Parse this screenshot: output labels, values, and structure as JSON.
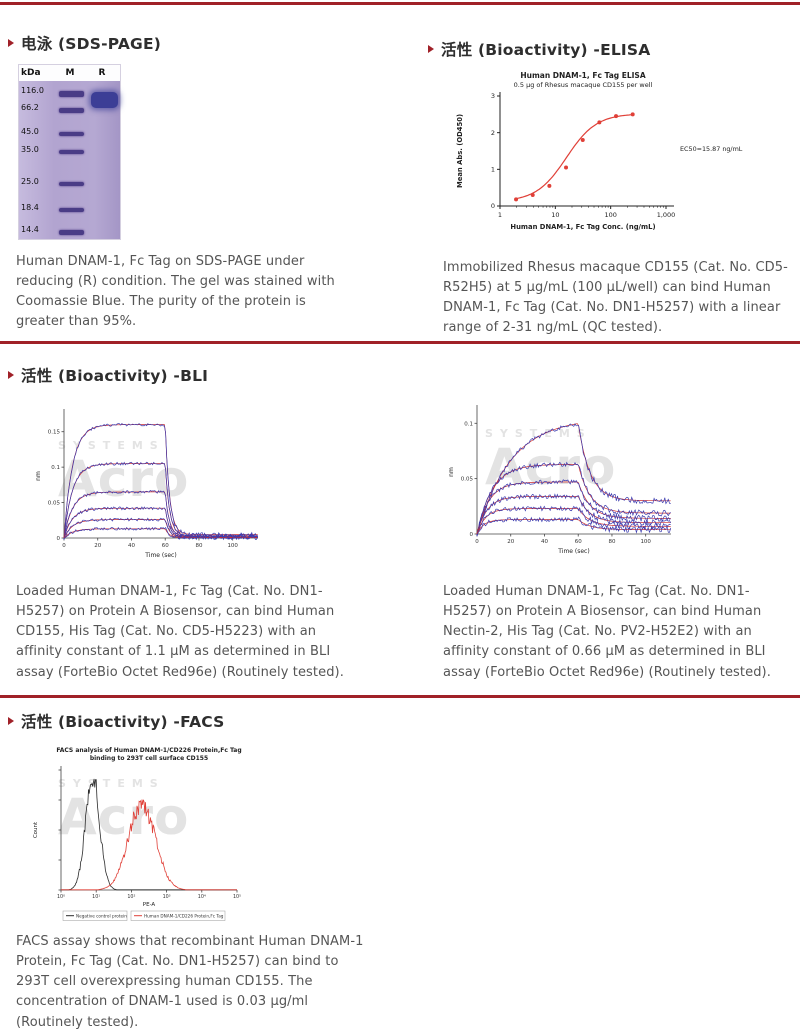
{
  "theme": {
    "accent": "#a02128",
    "text": "#555555",
    "band": "#4a3c86",
    "elisa_curve": "#e04038",
    "bli_data": "#3b3bb0",
    "bli_fit": "#cc2b2b",
    "facs_neg": "#2b2b2b",
    "facs_pos": "#e04038"
  },
  "watermark": {
    "brand": "Acro",
    "sub": "SYSTEMS"
  },
  "sections": {
    "sds": {
      "title": "电泳 (SDS-PAGE)",
      "gel": {
        "unit": "kDa",
        "lane_m": "M",
        "lane_r": "R",
        "markers": [
          "116.0",
          "66.2",
          "45.0",
          "35.0",
          "25.0",
          "18.4",
          "14.4"
        ]
      },
      "caption": "Human DNAM-1, Fc Tag on SDS-PAGE under reducing (R) condition. The gel was stained with Coomassie Blue. The purity of the protein is greater than 95%."
    },
    "elisa": {
      "title": "活性 (Bioactivity) -ELISA",
      "caption": "Immobilized Rhesus macaque CD155 (Cat. No. CD5-R52H5) at 5 μg/mL (100 μL/well) can bind Human DNAM-1, Fc Tag (Cat. No. DN1-H5257) with a linear range of 2-31 ng/mL (QC tested)."
    },
    "bli": {
      "title": "活性 (Bioactivity) -BLI",
      "caption_left": "Loaded Human DNAM-1, Fc Tag (Cat. No. DN1-H5257) on Protein A Biosensor, can bind Human CD155, His Tag (Cat. No. CD5-H5223) with an affinity constant of 1.1 μM as determined in BLI assay (ForteBio Octet Red96e) (Routinely tested).",
      "caption_right": "Loaded Human DNAM-1, Fc Tag (Cat. No. DN1-H5257) on Protein A Biosensor, can bind Human Nectin-2, His Tag (Cat. No. PV2-H52E2) with an affinity constant of 0.66 μM as determined in BLI assay (ForteBio Octet Red96e) (Routinely tested)."
    },
    "facs": {
      "title": "活性 (Bioactivity) -FACS",
      "caption": "FACS assay shows that recombinant Human DNAM-1 Protein, Fc Tag (Cat. No. DN1-H5257) can bind to 293T cell overexpressing human CD155. The concentration of DNAM-1 used is 0.03 μg/ml (Routinely tested)."
    }
  },
  "chart_data": [
    {
      "id": "elisa",
      "type": "line",
      "title": "Human DNAM-1, Fc Tag ELISA",
      "subtitle": "0.5 μg of Rhesus macaque CD155 per well",
      "xlabel": "Human DNAM-1, Fc Tag Conc. (ng/mL)",
      "ylabel": "Mean Abs. (OD450)",
      "xscale": "log",
      "xlim": [
        1,
        1000
      ],
      "ylim": [
        0,
        3
      ],
      "xticks": [
        1,
        10,
        100,
        1000
      ],
      "xtick_labels": [
        "1",
        "10",
        "100",
        "1,000"
      ],
      "yticks": [
        0,
        1,
        2,
        3
      ],
      "annotation": "EC50=15.87 ng/mL",
      "ec50": 15.87,
      "hill": 1.6,
      "top": 2.52,
      "bottom": 0.12,
      "x": [
        1.95,
        3.9,
        7.8,
        15.6,
        31.3,
        62.5,
        125,
        250
      ],
      "y": [
        0.18,
        0.3,
        0.55,
        1.05,
        1.8,
        2.28,
        2.45,
        2.5
      ]
    },
    {
      "id": "bli-cd155",
      "type": "sensorgram",
      "xlabel": "Time (sec)",
      "ylabel": "nm",
      "xlim": [
        0,
        115
      ],
      "ylim": [
        0,
        0.175
      ],
      "xticks": [
        0,
        20,
        40,
        60,
        80,
        100
      ],
      "yticks": [
        0,
        0.05,
        0.1,
        0.15
      ],
      "ytick_labels": [
        "0",
        "0.05",
        "0.1",
        "0.15"
      ],
      "assoc_end": 60,
      "plateaus": [
        0.16,
        0.105,
        0.065,
        0.042,
        0.026,
        0.013
      ],
      "tau_assoc": [
        5,
        5,
        5,
        5,
        5,
        5
      ],
      "tau_dissoc": 2.5,
      "residual_frac": 0.03
    },
    {
      "id": "bli-nectin2",
      "type": "sensorgram",
      "xlabel": "Time (sec)",
      "ylabel": "nm",
      "xlim": [
        0,
        115
      ],
      "ylim": [
        0,
        0.112
      ],
      "xticks": [
        0,
        20,
        40,
        60,
        80,
        100
      ],
      "yticks": [
        0,
        0.05,
        0.1
      ],
      "ytick_labels": [
        "0",
        "0.05",
        "0.1"
      ],
      "assoc_end": 60,
      "plateaus": [
        0.105,
        0.063,
        0.047,
        0.034,
        0.023,
        0.013
      ],
      "tau_assoc": [
        20,
        9,
        7,
        6,
        5,
        4
      ],
      "tau_dissoc": 7,
      "residual_frac": 0.3
    },
    {
      "id": "facs",
      "type": "histogram",
      "title_line1": "FACS analysis of Human DNAM-1/CD226 Protein,Fc Tag",
      "title_line2": "binding to 293T cell surface CD155",
      "xlabel": "PE-A",
      "ylabel": "Count",
      "xtick_labels": [
        "10⁰",
        "10¹",
        "10²",
        "10³",
        "10⁴",
        "10⁵"
      ],
      "series": [
        {
          "name": "Negative control protein",
          "color": "#2b2b2b",
          "center": 0.9,
          "sigma": 0.2,
          "peak": 0.93
        },
        {
          "name": "Human DNAM-1/CD226 Protein,Fc Tag",
          "color": "#e04038",
          "center": 2.3,
          "sigma": 0.38,
          "peak": 0.72
        }
      ]
    }
  ]
}
